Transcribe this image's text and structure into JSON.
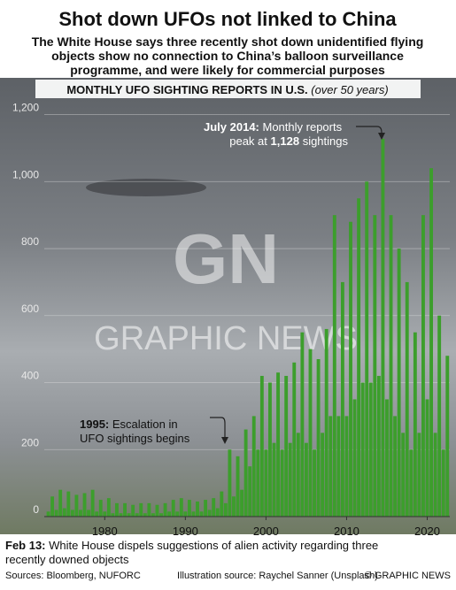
{
  "chart_data": {
    "type": "bar",
    "title": "Shot down UFOs not linked to China",
    "subtitle": [
      "The White House says three recently shot down unidentified flying",
      "objects show no connection to China’s balloon surveillance",
      "programme, and were likely for commercial purposes"
    ],
    "chart_title": "MONTHLY UFO SIGHTING REPORTS IN U.S.",
    "chart_title_note": "(over 50 years)",
    "color": "#3c9e2c",
    "grid": true,
    "xlim": [
      1972.5,
      2022.8
    ],
    "xticks": [
      1980,
      1990,
      2000,
      2010,
      2020
    ],
    "ylim": [
      0,
      1220
    ],
    "yticks": [
      0,
      200,
      400,
      600,
      800,
      {
        "value": 1000,
        "label": "1,000"
      },
      {
        "value": 1200,
        "label": "1,200"
      }
    ],
    "x": [
      1973,
      1973.5,
      1974,
      1974.5,
      1975,
      1975.5,
      1976,
      1976.5,
      1977,
      1977.5,
      1978,
      1978.5,
      1979,
      1979.5,
      1980,
      1980.5,
      1981,
      1981.5,
      1982,
      1982.5,
      1983,
      1983.5,
      1984,
      1984.5,
      1985,
      1985.5,
      1986,
      1986.5,
      1987,
      1987.5,
      1988,
      1988.5,
      1989,
      1989.5,
      1990,
      1990.5,
      1991,
      1991.5,
      1992,
      1992.5,
      1993,
      1993.5,
      1994,
      1994.5,
      1995,
      1995.5,
      1996,
      1996.5,
      1997,
      1997.5,
      1998,
      1998.5,
      1999,
      1999.5,
      2000,
      2000.5,
      2001,
      2001.5,
      2002,
      2002.5,
      2003,
      2003.5,
      2004,
      2004.5,
      2005,
      2005.5,
      2006,
      2006.5,
      2007,
      2007.5,
      2008,
      2008.5,
      2009,
      2009.5,
      2010,
      2010.5,
      2011,
      2011.5,
      2012,
      2012.5,
      2013,
      2013.5,
      2014,
      2014.5,
      2015,
      2015.5,
      2016,
      2016.5,
      2017,
      2017.5,
      2018,
      2018.5,
      2019,
      2019.5,
      2020,
      2020.5,
      2021,
      2021.5,
      2022,
      2022.5
    ],
    "values": [
      15,
      60,
      20,
      80,
      25,
      75,
      20,
      65,
      20,
      70,
      20,
      80,
      15,
      50,
      15,
      55,
      10,
      40,
      10,
      40,
      10,
      35,
      10,
      40,
      10,
      40,
      10,
      35,
      10,
      40,
      15,
      50,
      15,
      55,
      15,
      50,
      15,
      45,
      15,
      50,
      20,
      55,
      25,
      75,
      40,
      200,
      60,
      180,
      80,
      260,
      150,
      300,
      200,
      420,
      200,
      400,
      220,
      430,
      200,
      420,
      220,
      460,
      250,
      550,
      220,
      500,
      200,
      470,
      250,
      560,
      300,
      900,
      300,
      700,
      300,
      880,
      350,
      950,
      400,
      1000,
      400,
      900,
      420,
      1128,
      350,
      900,
      300,
      800,
      250,
      700,
      200,
      550,
      250,
      900,
      350,
      1040,
      250,
      600,
      200,
      480
    ],
    "annotations": [
      {
        "bold": "July 2014:",
        "text": "Monthly reports",
        "text2": "peak at",
        "bold2": "1,128",
        "text3": "sightings"
      },
      {
        "bold": "1995:",
        "text": "Escalation in",
        "text2": "UFO sightings begins"
      }
    ],
    "watermark": [
      "GN",
      "GRAPHIC NEWS"
    ],
    "footer": {
      "bold": "Feb 13:",
      "text": "White House dispels suggestions of alien activity regarding three",
      "text2": "recently downed objects"
    },
    "sources": "Sources: Bloomberg, NUFORC",
    "illustration": "Illustration source: Raychel Sanner (Unsplash)",
    "copyright": "© GRAPHIC NEWS"
  }
}
